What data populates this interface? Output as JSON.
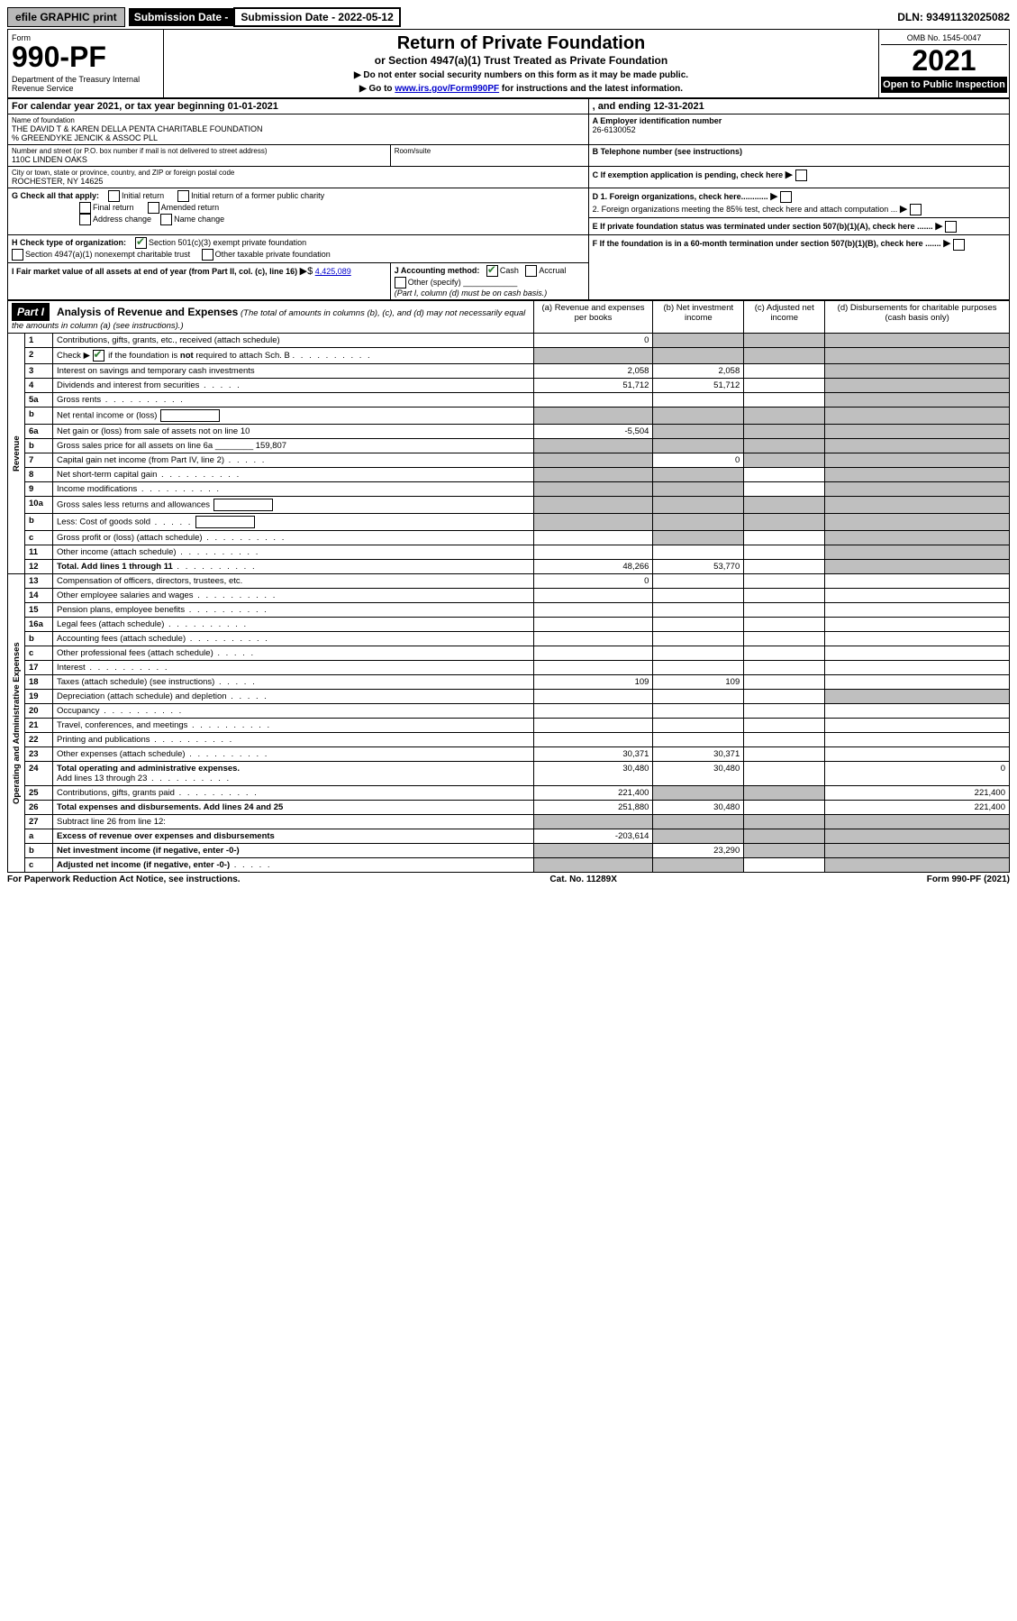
{
  "top": {
    "efile": "efile GRAPHIC print",
    "sub_label": "Submission Date - 2022-05-12",
    "dln": "DLN: 93491132025082"
  },
  "header": {
    "form_word": "Form",
    "form_no": "990-PF",
    "dept": "Department of the Treasury\nInternal Revenue Service",
    "title": "Return of Private Foundation",
    "subtitle": "or Section 4947(a)(1) Trust Treated as Private Foundation",
    "instr1": "▶ Do not enter social security numbers on this form as it may be made public.",
    "instr2_pre": "▶ Go to ",
    "instr2_link": "www.irs.gov/Form990PF",
    "instr2_post": " for instructions and the latest information.",
    "omb": "OMB No. 1545-0047",
    "year": "2021",
    "open": "Open to Public Inspection"
  },
  "cal": {
    "line": "For calendar year 2021, or tax year beginning 01-01-2021",
    "ending": ", and ending 12-31-2021"
  },
  "entity": {
    "name_label": "Name of foundation",
    "name": "THE DAVID T & KAREN DELLA PENTA CHARITABLE FOUNDATION",
    "care_of": "% GREENDYKE JENCIK & ASSOC PLL",
    "addr_label": "Number and street (or P.O. box number if mail is not delivered to street address)",
    "addr": "110C LINDEN OAKS",
    "room_label": "Room/suite",
    "city_label": "City or town, state or province, country, and ZIP or foreign postal code",
    "city": "ROCHESTER, NY  14625",
    "ein_label": "A Employer identification number",
    "ein": "26-6130052",
    "tel_label": "B Telephone number (see instructions)",
    "c_label": "C If exemption application is pending, check here",
    "d1": "D 1. Foreign organizations, check here............",
    "d2": "2. Foreign organizations meeting the 85% test, check here and attach computation ...",
    "e_label": "E  If private foundation status was terminated under section 507(b)(1)(A), check here .......",
    "f_label": "F  If the foundation is in a 60-month termination under section 507(b)(1)(B), check here .......",
    "g_label": "G Check all that apply:",
    "g_opts": [
      "Initial return",
      "Final return",
      "Address change",
      "Initial return of a former public charity",
      "Amended return",
      "Name change"
    ],
    "h_label": "H Check type of organization:",
    "h_501c3": "Section 501(c)(3) exempt private foundation",
    "h_4947": "Section 4947(a)(1) nonexempt charitable trust",
    "h_other": "Other taxable private foundation",
    "i_label": "I Fair market value of all assets at end of year (from Part II, col. (c), line 16)",
    "i_val": "4,425,089",
    "j_label": "J Accounting method:",
    "j_cash": "Cash",
    "j_accrual": "Accrual",
    "j_other": "Other (specify)",
    "j_note": "(Part I, column (d) must be on cash basis.)"
  },
  "part1": {
    "label": "Part I",
    "title": "Analysis of Revenue and Expenses",
    "title_note": "(The total of amounts in columns (b), (c), and (d) may not necessarily equal the amounts in column (a) (see instructions).)",
    "cols": {
      "a": "(a)  Revenue and expenses per books",
      "b": "(b)  Net investment income",
      "c": "(c)  Adjusted net income",
      "d": "(d)  Disbursements for charitable purposes (cash basis only)"
    }
  },
  "sections": {
    "revenue": "Revenue",
    "opadmin": "Operating and Administrative Expenses"
  },
  "lines": [
    {
      "n": "1",
      "d": "Contributions, gifts, grants, etc., received (attach schedule)",
      "a": "0",
      "grey_bcd": false,
      "grey_d": true
    },
    {
      "n": "2",
      "d": "Check ▶ ☑ if the foundation is not required to attach Sch. B",
      "dots": true,
      "all_grey": true
    },
    {
      "n": "3",
      "d": "Interest on savings and temporary cash investments",
      "a": "2,058",
      "b": "2,058"
    },
    {
      "n": "4",
      "d": "Dividends and interest from securities",
      "dots": true,
      "a": "51,712",
      "b": "51,712"
    },
    {
      "n": "5a",
      "d": "Gross rents",
      "dots": true
    },
    {
      "n": "b",
      "d": "Net rental income or (loss)",
      "inline_box": "",
      "grey_abcd": true
    },
    {
      "n": "6a",
      "d": "Net gain or (loss) from sale of assets not on line 10",
      "a": "-5,504",
      "grey_bcd": true,
      "grey_d": true
    },
    {
      "n": "b",
      "d": "Gross sales price for all assets on line 6a",
      "inline_val": "159,807",
      "grey_abcd": true
    },
    {
      "n": "7",
      "d": "Capital gain net income (from Part IV, line 2)",
      "dots": true,
      "grey_a": true,
      "b": "0",
      "grey_cd": true
    },
    {
      "n": "8",
      "d": "Net short-term capital gain",
      "dots": true,
      "grey_ab": true,
      "grey_d": true
    },
    {
      "n": "9",
      "d": "Income modifications",
      "dots": true,
      "grey_ab": true,
      "grey_d": true
    },
    {
      "n": "10a",
      "d": "Gross sales less returns and allowances",
      "inline_box": "",
      "grey_abcd": true
    },
    {
      "n": "b",
      "d": "Less: Cost of goods sold",
      "dots": true,
      "inline_box": "",
      "grey_abcd": true
    },
    {
      "n": "c",
      "d": "Gross profit or (loss) (attach schedule)",
      "dots": true,
      "grey_b": true,
      "grey_d": true
    },
    {
      "n": "11",
      "d": "Other income (attach schedule)",
      "dots": true
    },
    {
      "n": "12",
      "d": "Total. Add lines 1 through 11",
      "bold": true,
      "dots": true,
      "a": "48,266",
      "b": "53,770",
      "grey_d": true
    }
  ],
  "exp_lines": [
    {
      "n": "13",
      "d": "Compensation of officers, directors, trustees, etc.",
      "a": "0"
    },
    {
      "n": "14",
      "d": "Other employee salaries and wages",
      "dots": true
    },
    {
      "n": "15",
      "d": "Pension plans, employee benefits",
      "dots": true
    },
    {
      "n": "16a",
      "d": "Legal fees (attach schedule)",
      "dots": true
    },
    {
      "n": "b",
      "d": "Accounting fees (attach schedule)",
      "dots": true
    },
    {
      "n": "c",
      "d": "Other professional fees (attach schedule)",
      "dots": true
    },
    {
      "n": "17",
      "d": "Interest",
      "dots": true
    },
    {
      "n": "18",
      "d": "Taxes (attach schedule) (see instructions)",
      "dots": true,
      "a": "109",
      "b": "109"
    },
    {
      "n": "19",
      "d": "Depreciation (attach schedule) and depletion",
      "dots": true,
      "grey_d": true
    },
    {
      "n": "20",
      "d": "Occupancy",
      "dots": true
    },
    {
      "n": "21",
      "d": "Travel, conferences, and meetings",
      "dots": true
    },
    {
      "n": "22",
      "d": "Printing and publications",
      "dots": true
    },
    {
      "n": "23",
      "d": "Other expenses (attach schedule)",
      "dots": true,
      "a": "30,371",
      "b": "30,371"
    },
    {
      "n": "24",
      "d": "Total operating and administrative expenses. Add lines 13 through 23",
      "bold": true,
      "dots": true,
      "a": "30,480",
      "b": "30,480",
      "dval": "0"
    },
    {
      "n": "25",
      "d": "Contributions, gifts, grants paid",
      "dots": true,
      "a": "221,400",
      "grey_bc": true,
      "dval": "221,400"
    },
    {
      "n": "26",
      "d": "Total expenses and disbursements. Add lines 24 and 25",
      "bold": true,
      "a": "251,880",
      "b": "30,480",
      "dval": "221,400"
    },
    {
      "n": "27",
      "d": "Subtract line 26 from line 12:",
      "grey_all": true
    },
    {
      "n": "a",
      "d": "Excess of revenue over expenses and disbursements",
      "bold": true,
      "a": "-203,614",
      "grey_bcd": true
    },
    {
      "n": "b",
      "d": "Net investment income (if negative, enter -0-)",
      "bold": true,
      "grey_a": true,
      "b": "23,290",
      "grey_cd": true
    },
    {
      "n": "c",
      "d": "Adjusted net income (if negative, enter -0-)",
      "bold": true,
      "dots": true,
      "grey_ab": true,
      "grey_d": true
    }
  ],
  "footer": {
    "left": "For Paperwork Reduction Act Notice, see instructions.",
    "mid": "Cat. No. 11289X",
    "right": "Form 990-PF (2021)"
  }
}
